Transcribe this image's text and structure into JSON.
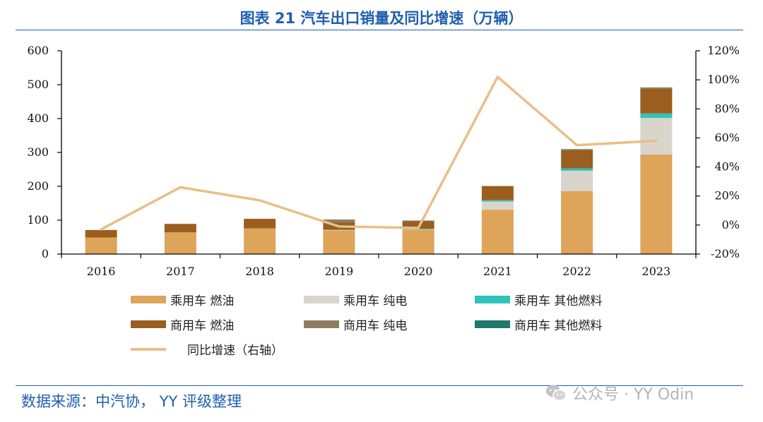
{
  "header": {
    "title": "图表 21 汽车出口销量及同比增速（万辆）"
  },
  "footer": {
    "source": "数据来源：中汽协， YY 评级整理",
    "watermark": "公众号 · YY Odin"
  },
  "colors": {
    "pv_fuel": "#dea45a",
    "pv_bev": "#d9d5cc",
    "pv_other": "#2ec4bc",
    "cv_fuel": "#9b5e1f",
    "cv_bev": "#8d7d5f",
    "cv_other": "#1e7a6a",
    "yoy_line": "#e8bf86",
    "axis": "#000000",
    "title_blue": "#1f5fb0"
  },
  "chart_data": {
    "type": "bar",
    "stacked": true,
    "title": "图表 21 汽车出口销量及同比增速（万辆）",
    "categories": [
      "2016",
      "2017",
      "2018",
      "2019",
      "2020",
      "2021",
      "2022",
      "2023"
    ],
    "ylim": [
      0,
      600
    ],
    "yticks": [
      "0",
      "100",
      "200",
      "300",
      "400",
      "500",
      "600"
    ],
    "y2lim": [
      -20,
      120
    ],
    "y2ticks": [
      "-20%",
      "0%",
      "20%",
      "40%",
      "60%",
      "80%",
      "100%",
      "120%"
    ],
    "series": [
      {
        "name": "乘用车 燃油",
        "key": "pv_fuel",
        "values": [
          49,
          64,
          76,
          70,
          72,
          131,
          186,
          294
        ]
      },
      {
        "name": "乘用车 纯电",
        "key": "pv_bev",
        "values": [
          0,
          0,
          0,
          1,
          1,
          24,
          60,
          108
        ]
      },
      {
        "name": "乘用车 其他燃料",
        "key": "pv_other",
        "values": [
          0,
          0,
          0,
          1,
          2,
          4,
          7,
          13
        ]
      },
      {
        "name": "商用车 燃油",
        "key": "cv_fuel",
        "values": [
          22,
          25,
          28,
          22,
          22,
          41,
          54,
          74
        ]
      },
      {
        "name": "商用车 纯电",
        "key": "cv_bev",
        "values": [
          0,
          0,
          0,
          8,
          2,
          1,
          2,
          2
        ]
      },
      {
        "name": "商用车 其他燃料",
        "key": "cv_other",
        "values": [
          0,
          0,
          0,
          0,
          0,
          0,
          1,
          1
        ]
      }
    ],
    "line_series": {
      "name": "同比增速（右轴）",
      "axis": "right",
      "values": [
        -3,
        26,
        17,
        -1,
        -2,
        102,
        55,
        58
      ]
    },
    "legend_position": "bottom",
    "grid": false
  }
}
